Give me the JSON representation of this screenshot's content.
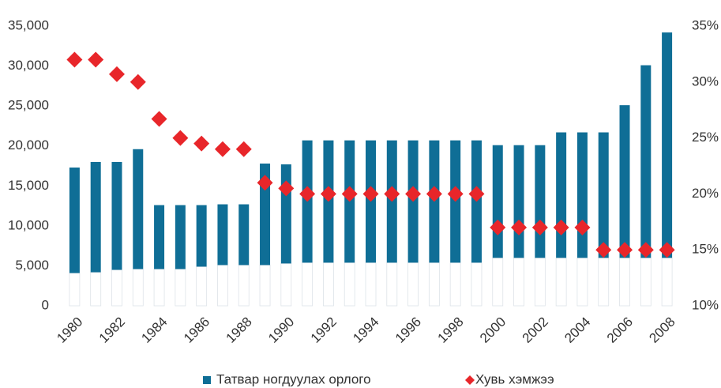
{
  "chart_data": {
    "type": "bar",
    "categories": [
      "1980",
      null,
      "1982",
      null,
      "1984",
      null,
      "1986",
      null,
      "1988",
      null,
      "1990",
      null,
      "1992",
      null,
      "1994",
      null,
      "1996",
      null,
      "1998",
      null,
      "2000",
      null,
      "2002",
      null,
      "2004",
      null,
      "2006",
      null,
      "2008"
    ],
    "series": [
      {
        "color": "#ffffff",
        "values": [
          4100,
          4200,
          4500,
          4600,
          4600,
          4600,
          4900,
          5100,
          5100,
          5100,
          5300,
          5400,
          5400,
          5400,
          5400,
          5400,
          5400,
          5400,
          5400,
          5400,
          6000,
          6000,
          6000,
          6000,
          6000,
          6000,
          6000,
          6000,
          6000
        ]
      },
      {
        "name": "Татвар ногдуулах орлого",
        "color": "#0f6e96",
        "values": [
          13200,
          13800,
          13500,
          15000,
          8000,
          8000,
          7700,
          7600,
          7600,
          12700,
          12400,
          15300,
          15300,
          15300,
          15300,
          15300,
          15300,
          15300,
          15300,
          15300,
          14100,
          14100,
          14100,
          15700,
          15700,
          15700,
          19100,
          24100,
          28200
        ]
      },
      {
        "name": "Хувь хэмжээ",
        "color": "#e8262a",
        "axis": "y2",
        "values": [
          32,
          32,
          30.7,
          30,
          26.7,
          25,
          24.5,
          24,
          24,
          21,
          20.5,
          20,
          20,
          20,
          20,
          20,
          20,
          20,
          20,
          20,
          17,
          17,
          17,
          17,
          17,
          15,
          15,
          15,
          15
        ]
      }
    ],
    "ylim": [
      0,
      35000
    ],
    "yticks": [
      0,
      {
        "value": 5000,
        "label": "5,000"
      },
      {
        "value": 10000,
        "label": "10,000"
      },
      {
        "value": 15000,
        "label": "15,000"
      },
      {
        "value": 20000,
        "label": "20,000"
      },
      {
        "value": 25000,
        "label": "25,000"
      },
      {
        "value": 30000,
        "label": "30,000"
      },
      {
        "value": 35000,
        "label": "35,000"
      }
    ],
    "y2lim": [
      10,
      35
    ],
    "y2ticks": [
      {
        "value": 10,
        "label": "10%"
      },
      {
        "value": 15,
        "label": "15%"
      },
      {
        "value": 20,
        "label": "20%"
      },
      {
        "value": 25,
        "label": "25%"
      },
      {
        "value": 30,
        "label": "30%"
      },
      {
        "value": 35,
        "label": "35%"
      }
    ],
    "grid": false,
    "legend": "bottom"
  }
}
